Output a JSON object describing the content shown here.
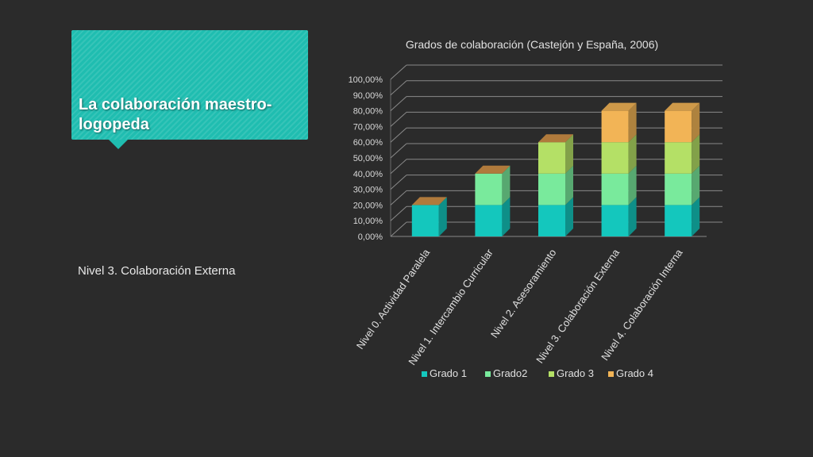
{
  "slide": {
    "title": "La colaboración maestro-logopeda",
    "subtitle": "Nivel 3. Colaboración Externa"
  },
  "colors": {
    "background": "#2b2b2b",
    "title_box": "#1fbdb0",
    "series": [
      "#14c7bd",
      "#79ea9c",
      "#b4e066",
      "#f2b456"
    ]
  },
  "chart_data": {
    "type": "bar",
    "stacked": true,
    "three_d": true,
    "title": "Grados de colaboración (Castejón y España, 2006)",
    "categories": [
      "Nivel 0. Actividad Paralela",
      "Nivel 1. Intercambio Curricular",
      "Nivel 2. Asesoramiento",
      "Nivel 3. Colaboración Externa",
      "Nivel 4. Colaboración Interna"
    ],
    "series": [
      {
        "name": "Grado 1",
        "values": [
          0.2,
          0.2,
          0.2,
          0.2,
          0.2
        ]
      },
      {
        "name": "Grado2",
        "values": [
          0,
          0.2,
          0.2,
          0.2,
          0.2
        ]
      },
      {
        "name": "Grado 3",
        "values": [
          0,
          0,
          0.2,
          0.2,
          0.2
        ]
      },
      {
        "name": "Grado 4",
        "values": [
          0,
          0,
          0,
          0.2,
          0.2
        ]
      }
    ],
    "y_ticks": [
      "0,00%",
      "10,00%",
      "20,00%",
      "30,00%",
      "40,00%",
      "50,00%",
      "60,00%",
      "70,00%",
      "80,00%",
      "90,00%",
      "100,00%"
    ],
    "ylim": [
      0,
      1
    ],
    "grid": true,
    "legend": "bottom"
  }
}
